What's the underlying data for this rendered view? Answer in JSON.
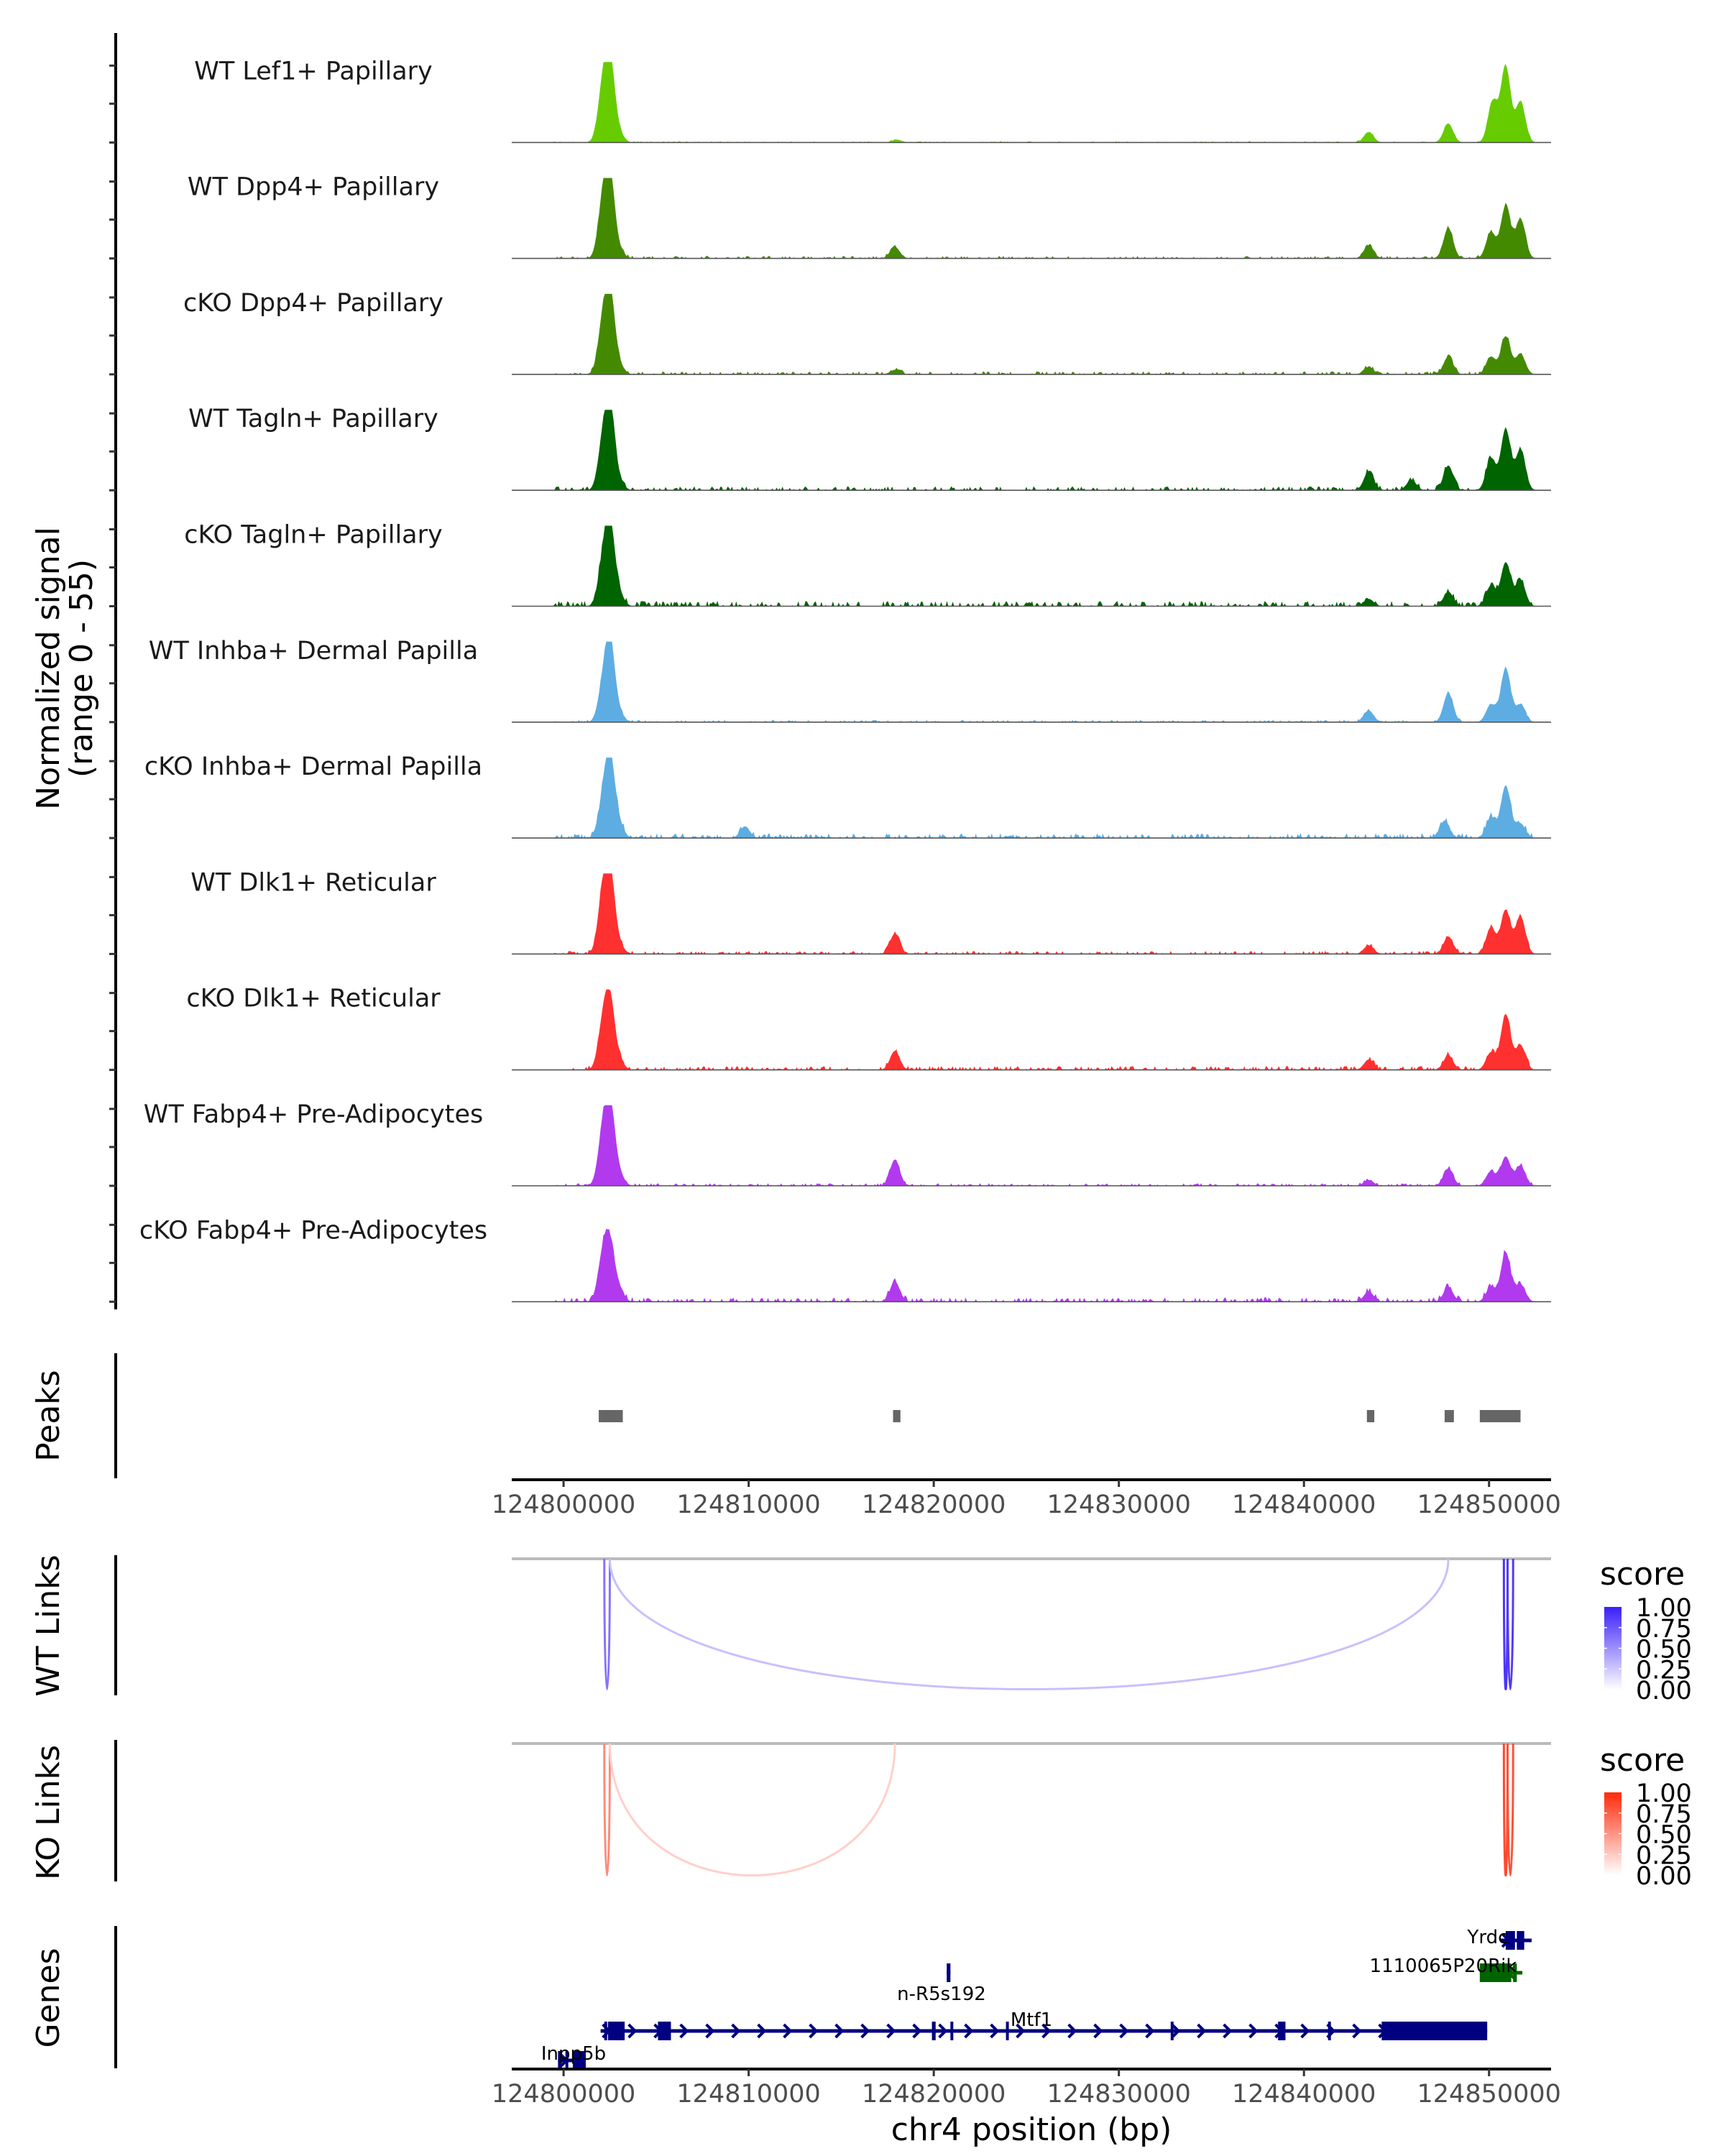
{
  "chart_data": {
    "type": "area",
    "title": "",
    "chromosome": "chr4",
    "xlabel": "chr4 position (bp)",
    "xlim": [
      124797200,
      124853350
    ],
    "x_ticks": [
      124800000,
      124810000,
      124820000,
      124830000,
      124840000,
      124850000
    ],
    "x_tick_labels": [
      "124800000",
      "124810000",
      "124820000",
      "124830000",
      "124840000",
      "124850000"
    ],
    "coverage": {
      "ylabel_line1": "Normalized signal",
      "ylabel_line2": "(range 0 - 55)",
      "ylim": [
        0,
        55
      ],
      "tracks": [
        {
          "name": "WT Lef1+ Papillary",
          "color": "#66CC00",
          "noise": 0.3,
          "peaks": [
            [
              124802100,
              33
            ],
            [
              124802500,
              55
            ],
            [
              124803000,
              6
            ],
            [
              124818000,
              2
            ],
            [
              124843500,
              7
            ],
            [
              124847800,
              13
            ],
            [
              124850200,
              28
            ],
            [
              124850900,
              52
            ],
            [
              124851700,
              28
            ]
          ]
        },
        {
          "name": "WT Dpp4+ Papillary",
          "color": "#448A00",
          "noise": 0.6,
          "peaks": [
            [
              124802100,
              33
            ],
            [
              124802500,
              55
            ],
            [
              124803000,
              5
            ],
            [
              124817900,
              8
            ],
            [
              124843500,
              9
            ],
            [
              124847800,
              21
            ],
            [
              124850100,
              18
            ],
            [
              124850900,
              36
            ],
            [
              124851700,
              27
            ]
          ]
        },
        {
          "name": "cKO Dpp4+ Papillary",
          "color": "#448A00",
          "noise": 0.7,
          "peaks": [
            [
              124802100,
              30
            ],
            [
              124802500,
              55
            ],
            [
              124803000,
              6
            ],
            [
              124817900,
              3
            ],
            [
              124843500,
              5
            ],
            [
              124847800,
              12
            ],
            [
              124850100,
              12
            ],
            [
              124850900,
              26
            ],
            [
              124851700,
              14
            ]
          ]
        },
        {
          "name": "WT Tagln+ Papillary",
          "color": "#006400",
          "noise": 0.9,
          "peaks": [
            [
              124802100,
              28
            ],
            [
              124802500,
              55
            ],
            [
              124803000,
              6
            ],
            [
              124843500,
              13
            ],
            [
              124845800,
              7
            ],
            [
              124847800,
              17
            ],
            [
              124850100,
              22
            ],
            [
              124850900,
              42
            ],
            [
              124851700,
              28
            ]
          ]
        },
        {
          "name": "cKO Tagln+ Papillary",
          "color": "#006400",
          "noise": 1.2,
          "peaks": [
            [
              124802100,
              25
            ],
            [
              124802500,
              55
            ],
            [
              124803000,
              8
            ],
            [
              124843500,
              5
            ],
            [
              124847800,
              10
            ],
            [
              124850100,
              14
            ],
            [
              124850900,
              30
            ],
            [
              124851700,
              18
            ]
          ]
        },
        {
          "name": "WT Inhba+ Dermal Papilla",
          "color": "#5DADE2",
          "noise": 0.5,
          "peaks": [
            [
              124802100,
              20
            ],
            [
              124802500,
              55
            ],
            [
              124803000,
              6
            ],
            [
              124843500,
              8
            ],
            [
              124847800,
              20
            ],
            [
              124850100,
              12
            ],
            [
              124850900,
              37
            ],
            [
              124851700,
              12
            ]
          ]
        },
        {
          "name": "cKO Inhba+ Dermal Papilla",
          "color": "#5DADE2",
          "noise": 1.1,
          "peaks": [
            [
              124802100,
              20
            ],
            [
              124802500,
              55
            ],
            [
              124803000,
              9
            ],
            [
              124809800,
              8
            ],
            [
              124847600,
              12
            ],
            [
              124850100,
              14
            ],
            [
              124850900,
              36
            ],
            [
              124851700,
              10
            ]
          ]
        },
        {
          "name": "WT Dlk1+ Reticular",
          "color": "#FF3030",
          "noise": 0.7,
          "peaks": [
            [
              124802100,
              36
            ],
            [
              124802500,
              55
            ],
            [
              124803000,
              6
            ],
            [
              124817900,
              14
            ],
            [
              124843500,
              6
            ],
            [
              124847800,
              12
            ],
            [
              124850100,
              18
            ],
            [
              124850900,
              30
            ],
            [
              124851700,
              26
            ]
          ]
        },
        {
          "name": "cKO Dlk1+ Reticular",
          "color": "#FF3030",
          "noise": 0.9,
          "peaks": [
            [
              124802100,
              27
            ],
            [
              124802500,
              47
            ],
            [
              124803000,
              6
            ],
            [
              124817900,
              13
            ],
            [
              124843500,
              7
            ],
            [
              124847800,
              10
            ],
            [
              124850100,
              12
            ],
            [
              124850900,
              38
            ],
            [
              124851700,
              17
            ]
          ]
        },
        {
          "name": "WT Fabp4+ Pre-Adipocytes",
          "color": "#B23AEE",
          "noise": 0.6,
          "peaks": [
            [
              124802100,
              31
            ],
            [
              124802500,
              55
            ],
            [
              124803000,
              8
            ],
            [
              124817900,
              18
            ],
            [
              124843500,
              4
            ],
            [
              124847800,
              12
            ],
            [
              124850100,
              10
            ],
            [
              124850900,
              20
            ],
            [
              124851700,
              14
            ]
          ]
        },
        {
          "name": "cKO Fabp4+ Pre-Adipocytes",
          "color": "#B23AEE",
          "noise": 1.0,
          "peaks": [
            [
              124802100,
              28
            ],
            [
              124802500,
              37
            ],
            [
              124803000,
              8
            ],
            [
              124817900,
              14
            ],
            [
              124843500,
              7
            ],
            [
              124847800,
              10
            ],
            [
              124850100,
              10
            ],
            [
              124850900,
              34
            ],
            [
              124851700,
              12
            ]
          ]
        }
      ]
    },
    "peaks": {
      "label": "Peaks",
      "color": "#666666",
      "regions": [
        [
          124801900,
          124803200
        ],
        [
          124817800,
          124818200
        ],
        [
          124843400,
          124843800
        ],
        [
          124847600,
          124848100
        ],
        [
          124849500,
          124851700
        ]
      ]
    },
    "wt_links": {
      "label": "WT Links",
      "legend_title": "score",
      "legend_ticks": [
        "1.00",
        "0.75",
        "0.50",
        "0.25",
        "0.00"
      ],
      "high_color": "#3A1FF8",
      "links": [
        {
          "start": 124802200,
          "end": 124802500,
          "score": 0.62
        },
        {
          "start": 124802500,
          "end": 124847800,
          "score": 0.28
        },
        {
          "start": 124850800,
          "end": 124851000,
          "score": 0.9
        },
        {
          "start": 124851000,
          "end": 124851300,
          "score": 0.88
        }
      ]
    },
    "ko_links": {
      "label": "KO Links",
      "legend_title": "score",
      "legend_ticks": [
        "1.00",
        "0.75",
        "0.50",
        "0.25",
        "0.00"
      ],
      "high_color": "#FF2A0A",
      "links": [
        {
          "start": 124802200,
          "end": 124802500,
          "score": 0.55
        },
        {
          "start": 124802500,
          "end": 124817900,
          "score": 0.22
        },
        {
          "start": 124850800,
          "end": 124851000,
          "score": 0.85
        },
        {
          "start": 124851000,
          "end": 124851300,
          "score": 0.82
        }
      ]
    },
    "genes": {
      "label": "Genes",
      "items": [
        {
          "name": "Inpp5b",
          "color": "#000080",
          "start": 124799700,
          "end": 124801200,
          "strand": "+",
          "row": 2,
          "exons": [
            [
              124799700,
              124799800
            ],
            [
              124800100,
              124800200
            ],
            [
              124800500,
              124801200
            ]
          ]
        },
        {
          "name": "Mtf1",
          "color": "#000080",
          "start": 124802000,
          "end": 124849900,
          "strand": "+",
          "row": 1,
          "exons": [
            [
              124802200,
              124802300
            ],
            [
              124802400,
              124803300
            ],
            [
              124805100,
              124805800
            ],
            [
              124819900,
              124820100
            ],
            [
              124820900,
              124821000
            ],
            [
              124823900,
              124824000
            ],
            [
              124832800,
              124832850
            ],
            [
              124838600,
              124839000
            ],
            [
              124841300,
              124841350
            ],
            [
              124844200,
              124849900
            ]
          ]
        },
        {
          "name": "n-R5s192",
          "color": "#000080",
          "start": 124820700,
          "end": 124820900,
          "strand": "+",
          "row": 0,
          "exons": [
            [
              124820700,
              124820900
            ]
          ]
        },
        {
          "name": "1110065P20Rik",
          "color": "#006400",
          "start": 124849500,
          "end": 124851800,
          "strand": "-",
          "row": 0,
          "exons": [
            [
              124849500,
              124851200
            ],
            [
              124851300,
              124851500
            ]
          ]
        },
        {
          "name": "Yrdc",
          "color": "#000080",
          "start": 124850600,
          "end": 124852300,
          "strand": "+",
          "row": -1,
          "exons": [
            [
              124850900,
              124851400
            ],
            [
              124851500,
              124851900
            ]
          ]
        }
      ]
    }
  }
}
